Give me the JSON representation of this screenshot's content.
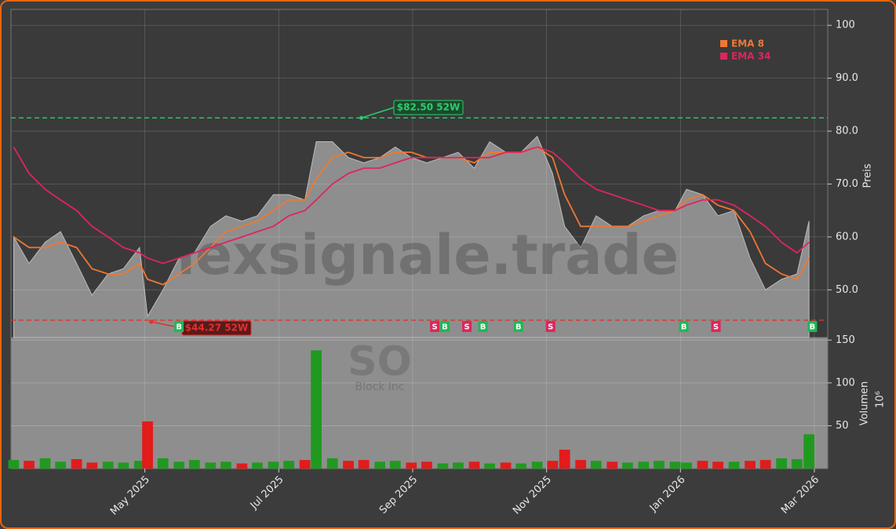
{
  "chart_data": {
    "type": "stock",
    "watermark": "hexsignale.trade",
    "ticker": "SO",
    "company": "Block Inc",
    "y_label": "Preis",
    "y2_label": "Volumen",
    "volume_scale": "10⁶",
    "xlim": [
      0,
      12.2
    ],
    "xticks": [
      {
        "value": 2,
        "label": "May 2025"
      },
      {
        "value": 4,
        "label": "Jul 2025"
      },
      {
        "value": 6,
        "label": "Sep 2025"
      },
      {
        "value": 8,
        "label": "Nov 2025"
      },
      {
        "value": 10,
        "label": "Jan 2026"
      },
      {
        "value": 12,
        "label": "Mar 2026"
      }
    ],
    "ylim": [
      41,
      103
    ],
    "yticks": [
      {
        "value": 50,
        "label": "50.0"
      },
      {
        "value": 60,
        "label": "60.0"
      },
      {
        "value": 70,
        "label": "70.0"
      },
      {
        "value": 80,
        "label": "80.0"
      },
      {
        "value": 90,
        "label": "90.0"
      },
      100
    ],
    "y2lim": [
      0,
      153
    ],
    "y2ticks": [
      50,
      100,
      150
    ],
    "grid": true,
    "legend": "upper right",
    "x": [
      0.04,
      0.27,
      0.51,
      0.74,
      0.98,
      1.21,
      1.45,
      1.68,
      1.92,
      2.04,
      2.27,
      2.51,
      2.74,
      2.98,
      3.21,
      3.45,
      3.68,
      3.92,
      4.15,
      4.39,
      4.56,
      4.8,
      5.04,
      5.27,
      5.51,
      5.74,
      5.98,
      6.21,
      6.45,
      6.68,
      6.92,
      7.15,
      7.39,
      7.62,
      7.86,
      8.09,
      8.27,
      8.51,
      8.74,
      8.98,
      9.21,
      9.45,
      9.68,
      9.92,
      10.09,
      10.33,
      10.56,
      10.8,
      11.04,
      11.27,
      11.51,
      11.74,
      11.92
    ],
    "close": {
      "color": "#8e8e8e",
      "values": [
        60,
        55,
        59,
        61,
        55,
        49,
        53,
        54,
        58,
        45,
        50,
        56,
        57,
        62,
        64,
        63,
        64,
        68,
        68,
        67,
        78,
        78,
        75,
        74,
        75,
        77,
        75,
        74,
        75,
        76,
        73,
        78,
        76,
        76,
        79,
        72,
        62,
        58,
        64,
        62,
        62,
        64,
        65,
        65,
        69,
        68,
        64,
        65,
        56,
        50,
        52,
        53,
        63
      ]
    },
    "series": [
      {
        "name": "EMA 8",
        "color": "#f07830",
        "values": [
          60,
          58,
          58,
          59,
          58,
          54,
          53,
          53,
          55,
          52,
          51,
          53,
          55,
          58,
          61,
          62,
          63,
          65,
          67,
          67,
          71,
          75,
          76,
          75,
          75,
          76,
          76,
          75,
          75,
          75,
          74,
          76,
          76,
          76,
          77,
          75,
          68,
          62,
          62,
          62,
          62,
          63,
          64,
          65,
          67,
          68,
          66,
          65,
          61,
          55,
          53,
          52,
          56
        ]
      },
      {
        "name": "EMA 34",
        "color": "#e0245e",
        "values": [
          77,
          72,
          69,
          67,
          65,
          62,
          60,
          58,
          57,
          56,
          55,
          56,
          57,
          58,
          59,
          60,
          61,
          62,
          64,
          65,
          67,
          70,
          72,
          73,
          73,
          74,
          75,
          75,
          75,
          75,
          75,
          75,
          76,
          76,
          77,
          76,
          74,
          71,
          69,
          68,
          67,
          66,
          65,
          65,
          66,
          67,
          67,
          66,
          64,
          62,
          59,
          57,
          59
        ]
      }
    ],
    "volume": {
      "axis": "y2",
      "up_color": "#1f9a1f",
      "down_color": "#e21b1b",
      "values": [
        10,
        9,
        12,
        8,
        11,
        7,
        8,
        7,
        9,
        55,
        12,
        8,
        10,
        7,
        8,
        6,
        7,
        8,
        9,
        10,
        138,
        12,
        9,
        10,
        8,
        9,
        7,
        8,
        6,
        7,
        8,
        6,
        7,
        6,
        8,
        9,
        22,
        10,
        9,
        8,
        7,
        8,
        9,
        8,
        7,
        9,
        8,
        8,
        9,
        10,
        12,
        11,
        40
      ]
    },
    "high": {
      "value": 82.5,
      "label": "$82.50 52W",
      "x": 5.21,
      "color": "#2ecc71"
    },
    "low": {
      "value": 44.27,
      "label": "$44.27 52W",
      "x": 2.07,
      "color": "#e03030"
    },
    "signal_colors": {
      "B": "#1db954",
      "S": "#e0245e"
    },
    "signals": [
      {
        "x": 2.51,
        "label": "B"
      },
      {
        "x": 6.33,
        "label": "S"
      },
      {
        "x": 6.48,
        "label": "B"
      },
      {
        "x": 6.81,
        "label": "S"
      },
      {
        "x": 7.05,
        "label": "B"
      },
      {
        "x": 7.58,
        "label": "B"
      },
      {
        "x": 8.06,
        "label": "S"
      },
      {
        "x": 10.05,
        "label": "B"
      },
      {
        "x": 10.53,
        "label": "S"
      },
      {
        "x": 11.97,
        "label": "B"
      }
    ]
  }
}
